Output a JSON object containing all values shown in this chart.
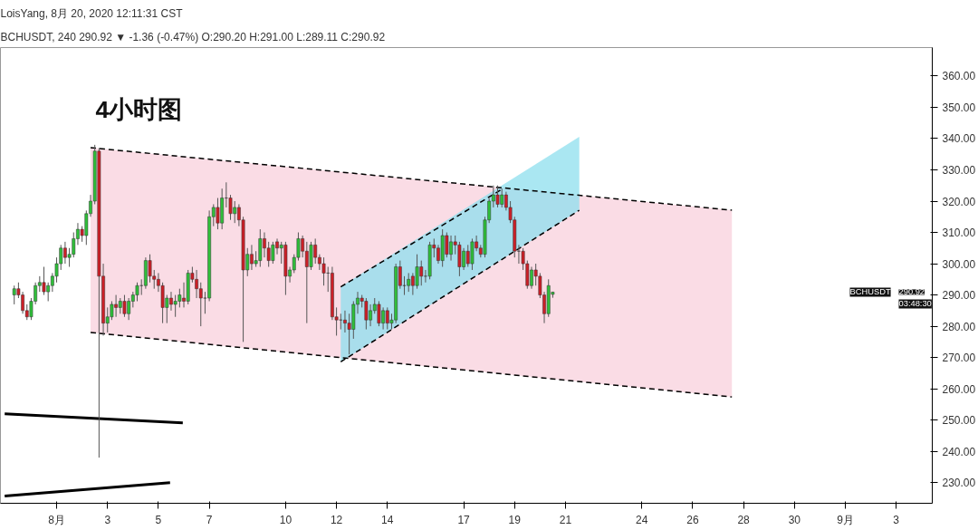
{
  "chart_data": {
    "type": "candlestick",
    "title": "4小时图",
    "annotations": [
      "LoisYang, 8月 20, 2020 12:11:31 CST",
      "BCHUSDT, 240 290.92 ▼ -1.36 (-0.47%) O:290.20 H:291.00 L:289.11 C:290.92",
      "BCHUSDT",
      "290.92",
      "03:48:30"
    ],
    "x": [
      "2020-07-30T08:00",
      "2020-07-30T12:00",
      "2020-07-30T16:00",
      "2020-07-30T20:00",
      "2020-07-31T00:00",
      "2020-07-31T04:00",
      "2020-07-31T08:00",
      "2020-07-31T12:00",
      "2020-07-31T16:00",
      "2020-07-31T20:00",
      "2020-08-01T00:00",
      "2020-08-01T04:00",
      "2020-08-01T08:00",
      "2020-08-01T12:00",
      "2020-08-01T16:00",
      "2020-08-01T20:00",
      "2020-08-02T00:00",
      "2020-08-02T04:00",
      "2020-08-02T08:00",
      "2020-08-02T12:00",
      "2020-08-02T16:00",
      "2020-08-02T20:00",
      "2020-08-03T00:00",
      "2020-08-03T04:00",
      "2020-08-03T08:00",
      "2020-08-03T12:00",
      "2020-08-03T16:00",
      "2020-08-03T20:00",
      "2020-08-04T00:00",
      "2020-08-04T04:00",
      "2020-08-04T08:00",
      "2020-08-04T12:00",
      "2020-08-04T16:00",
      "2020-08-04T20:00",
      "2020-08-05T00:00",
      "2020-08-05T04:00",
      "2020-08-05T08:00",
      "2020-08-05T12:00",
      "2020-08-05T16:00",
      "2020-08-05T20:00",
      "2020-08-06T00:00",
      "2020-08-06T04:00",
      "2020-08-06T08:00",
      "2020-08-06T12:00",
      "2020-08-06T16:00",
      "2020-08-06T20:00",
      "2020-08-07T00:00",
      "2020-08-07T04:00",
      "2020-08-07T08:00",
      "2020-08-07T12:00",
      "2020-08-07T16:00",
      "2020-08-07T20:00",
      "2020-08-08T00:00",
      "2020-08-08T04:00",
      "2020-08-08T08:00",
      "2020-08-08T12:00",
      "2020-08-08T16:00",
      "2020-08-08T20:00",
      "2020-08-09T00:00",
      "2020-08-09T04:00",
      "2020-08-09T08:00",
      "2020-08-09T12:00",
      "2020-08-09T16:00",
      "2020-08-09T20:00",
      "2020-08-10T00:00",
      "2020-08-10T04:00",
      "2020-08-10T08:00",
      "2020-08-10T12:00",
      "2020-08-10T16:00",
      "2020-08-10T20:00",
      "2020-08-11T00:00",
      "2020-08-11T04:00",
      "2020-08-11T08:00",
      "2020-08-11T12:00",
      "2020-08-11T16:00",
      "2020-08-11T20:00",
      "2020-08-12T00:00",
      "2020-08-12T04:00",
      "2020-08-12T08:00",
      "2020-08-12T12:00",
      "2020-08-12T16:00",
      "2020-08-12T20:00",
      "2020-08-13T00:00",
      "2020-08-13T04:00",
      "2020-08-13T08:00",
      "2020-08-13T12:00",
      "2020-08-13T16:00",
      "2020-08-13T20:00",
      "2020-08-14T00:00",
      "2020-08-14T04:00",
      "2020-08-14T08:00",
      "2020-08-14T12:00",
      "2020-08-14T16:00",
      "2020-08-14T20:00",
      "2020-08-15T00:00",
      "2020-08-15T04:00",
      "2020-08-15T08:00",
      "2020-08-15T12:00",
      "2020-08-15T16:00",
      "2020-08-15T20:00",
      "2020-08-16T00:00",
      "2020-08-16T04:00",
      "2020-08-16T08:00",
      "2020-08-16T12:00",
      "2020-08-16T16:00",
      "2020-08-16T20:00",
      "2020-08-17T00:00",
      "2020-08-17T04:00",
      "2020-08-17T08:00",
      "2020-08-17T12:00",
      "2020-08-17T16:00",
      "2020-08-17T20:00",
      "2020-08-18T00:00",
      "2020-08-18T04:00",
      "2020-08-18T08:00",
      "2020-08-18T12:00",
      "2020-08-18T16:00",
      "2020-08-18T20:00",
      "2020-08-19T00:00",
      "2020-08-19T04:00",
      "2020-08-19T08:00",
      "2020-08-19T12:00",
      "2020-08-19T16:00",
      "2020-08-19T20:00",
      "2020-08-20T00:00",
      "2020-08-20T04:00",
      "2020-08-20T08:00",
      "2020-08-20T12:00"
    ],
    "ohlc": [
      [
        290,
        293,
        287,
        292
      ],
      [
        292,
        294,
        289,
        290
      ],
      [
        290,
        291,
        284,
        285
      ],
      [
        285,
        287,
        282,
        283
      ],
      [
        283,
        289,
        282,
        288
      ],
      [
        288,
        294,
        287,
        293
      ],
      [
        293,
        296,
        291,
        294
      ],
      [
        294,
        299,
        290,
        291
      ],
      [
        291,
        294,
        288,
        293
      ],
      [
        293,
        297,
        291,
        296
      ],
      [
        296,
        302,
        294,
        300
      ],
      [
        300,
        306,
        298,
        305
      ],
      [
        305,
        307,
        300,
        302
      ],
      [
        302,
        305,
        299,
        303
      ],
      [
        303,
        310,
        302,
        308
      ],
      [
        308,
        313,
        306,
        311
      ],
      [
        311,
        312,
        307,
        309
      ],
      [
        309,
        317,
        306,
        316
      ],
      [
        316,
        322,
        315,
        320
      ],
      [
        320,
        338,
        319,
        336
      ],
      [
        336,
        337,
        238,
        296
      ],
      [
        296,
        300,
        277,
        281
      ],
      [
        281,
        286,
        278,
        283
      ],
      [
        283,
        288,
        282,
        287
      ],
      [
        287,
        290,
        283,
        286
      ],
      [
        286,
        289,
        284,
        288
      ],
      [
        288,
        290,
        283,
        284
      ],
      [
        284,
        289,
        282,
        288
      ],
      [
        288,
        291,
        286,
        290
      ],
      [
        290,
        294,
        288,
        293
      ],
      [
        293,
        295,
        290,
        293
      ],
      [
        293,
        302,
        292,
        301
      ],
      [
        301,
        303,
        294,
        296
      ],
      [
        296,
        298,
        292,
        295
      ],
      [
        295,
        297,
        291,
        293
      ],
      [
        293,
        294,
        281,
        286
      ],
      [
        286,
        290,
        281,
        289
      ],
      [
        289,
        291,
        285,
        287
      ],
      [
        287,
        290,
        283,
        288
      ],
      [
        288,
        292,
        286,
        290
      ],
      [
        289,
        294,
        286,
        288
      ],
      [
        288,
        298,
        287,
        297
      ],
      [
        297,
        299,
        294,
        295
      ],
      [
        295,
        298,
        289,
        292
      ],
      [
        292,
        294,
        280,
        289
      ],
      [
        289,
        291,
        284,
        289
      ],
      [
        289,
        317,
        288,
        315
      ],
      [
        315,
        319,
        312,
        318
      ],
      [
        318,
        321,
        311,
        313
      ],
      [
        313,
        324,
        311,
        321
      ],
      [
        321,
        326,
        318,
        321
      ],
      [
        321,
        322,
        314,
        316
      ],
      [
        316,
        320,
        313,
        318
      ],
      [
        318,
        319,
        312,
        314
      ],
      [
        314,
        315,
        275,
        298
      ],
      [
        298,
        305,
        296,
        303
      ],
      [
        303,
        306,
        298,
        300
      ],
      [
        300,
        304,
        299,
        301
      ],
      [
        301,
        311,
        299,
        308
      ],
      [
        308,
        310,
        302,
        305
      ],
      [
        305,
        307,
        299,
        301
      ],
      [
        301,
        307,
        300,
        306
      ],
      [
        307,
        308,
        303,
        305
      ],
      [
        305,
        307,
        300,
        306
      ],
      [
        306,
        307,
        290,
        296
      ],
      [
        296,
        299,
        294,
        298
      ],
      [
        298,
        303,
        297,
        302
      ],
      [
        302,
        310,
        301,
        308
      ],
      [
        308,
        309,
        302,
        304
      ],
      [
        304,
        307,
        281,
        299
      ],
      [
        299,
        307,
        298,
        306
      ],
      [
        306,
        308,
        300,
        302
      ],
      [
        302,
        303,
        298,
        300
      ],
      [
        300,
        302,
        293,
        297
      ],
      [
        297,
        299,
        291,
        297
      ],
      [
        297,
        299,
        282,
        283
      ],
      [
        283,
        286,
        277,
        282
      ],
      [
        282,
        284,
        279,
        282
      ],
      [
        282,
        285,
        278,
        281
      ],
      [
        281,
        284,
        271,
        279
      ],
      [
        279,
        288,
        276,
        287
      ],
      [
        287,
        291,
        284,
        289
      ],
      [
        289,
        290,
        286,
        288
      ],
      [
        288,
        289,
        279,
        282
      ],
      [
        282,
        287,
        280,
        285
      ],
      [
        285,
        289,
        284,
        287
      ],
      [
        287,
        288,
        280,
        281
      ],
      [
        281,
        286,
        279,
        285
      ],
      [
        285,
        286,
        279,
        281
      ],
      [
        281,
        284,
        279,
        282
      ],
      [
        282,
        300,
        281,
        299
      ],
      [
        299,
        301,
        292,
        293
      ],
      [
        293,
        296,
        290,
        293
      ],
      [
        293,
        297,
        291,
        295
      ],
      [
        296,
        297,
        290,
        293
      ],
      [
        293,
        303,
        292,
        299
      ],
      [
        299,
        301,
        293,
        296
      ],
      [
        296,
        298,
        294,
        296
      ],
      [
        296,
        307,
        295,
        306
      ],
      [
        306,
        308,
        302,
        305
      ],
      [
        305,
        306,
        300,
        301
      ],
      [
        301,
        311,
        299,
        309
      ],
      [
        309,
        310,
        302,
        303
      ],
      [
        303,
        309,
        301,
        307
      ],
      [
        307,
        309,
        303,
        306
      ],
      [
        306,
        307,
        296,
        299
      ],
      [
        299,
        305,
        298,
        304
      ],
      [
        304,
        306,
        299,
        300
      ],
      [
        300,
        308,
        298,
        307
      ],
      [
        307,
        309,
        304,
        305
      ],
      [
        305,
        306,
        302,
        303
      ],
      [
        303,
        315,
        302,
        314
      ],
      [
        314,
        321,
        313,
        320
      ],
      [
        320,
        325,
        318,
        322
      ],
      [
        322,
        325,
        318,
        319
      ],
      [
        319,
        324,
        318,
        322
      ],
      [
        322,
        323,
        317,
        318
      ],
      [
        318,
        320,
        313,
        314
      ],
      [
        314,
        315,
        302,
        304
      ],
      [
        304,
        306,
        300,
        304
      ],
      [
        304,
        305,
        298,
        300
      ],
      [
        300,
        301,
        292,
        293
      ],
      [
        293,
        299,
        292,
        298
      ],
      [
        298,
        300,
        293,
        296
      ],
      [
        296,
        297,
        289,
        290
      ],
      [
        290,
        291,
        281,
        284
      ],
      [
        284,
        295,
        283,
        293
      ],
      [
        290.2,
        291,
        289.11,
        290.92
      ]
    ],
    "series": [
      {
        "type": "line",
        "line_style": "dashed",
        "color": "#000000",
        "x": [
          "2020-08-02T08:00",
          "2020-08-27T13:00"
        ],
        "values": [
          337.1,
          317.1
        ],
        "lower": [
          278.0,
          257.4
        ],
        "upper": [
          337.1,
          317.1
        ]
      },
      {
        "type": "line",
        "line_style": "dashed",
        "color": "#000000",
        "x": [
          "2020-08-02T08:00",
          "2020-08-27T13:00"
        ],
        "values": [
          278.0,
          257.4
        ]
      },
      {
        "type": "line",
        "line_style": "dashed",
        "color": "#000000",
        "x": [
          "2020-08-12T04:00",
          "2020-08-21T13:00"
        ],
        "values": [
          268.6,
          317.1
        ],
        "lower": [
          268.6,
          317.1
        ],
        "upper": [
          292.6,
          340.6
        ]
      },
      {
        "type": "line",
        "line_style": "dashed",
        "color": "#000000",
        "x": [
          "2020-08-12T04:00",
          "2020-08-18T13:00"
        ],
        "values": [
          292.6,
          324.0
        ]
      },
      {
        "type": "line",
        "line_style": "solid",
        "color": "#000000",
        "x": [
          "2020-07-29T23:00",
          "2020-08-05T23:00"
        ],
        "values": [
          252.0,
          249.1
        ]
      },
      {
        "type": "line",
        "line_style": "solid",
        "color": "#000000",
        "x": [
          "2020-07-29T23:00",
          "2020-08-05T11:00"
        ],
        "values": [
          225.7,
          230.0
        ]
      }
    ],
    "xlim": [
      "2020-07-29T19:00",
      "2020-09-04T10:00"
    ],
    "xticks": [
      {
        "value": "2020-08-01",
        "label": "8月"
      },
      {
        "value": "2020-08-03",
        "label": "3"
      },
      {
        "value": "2020-08-05",
        "label": "5"
      },
      {
        "value": "2020-08-07",
        "label": "7"
      },
      {
        "value": "2020-08-10",
        "label": "10"
      },
      {
        "value": "2020-08-12",
        "label": "12"
      },
      {
        "value": "2020-08-14",
        "label": "14"
      },
      {
        "value": "2020-08-17",
        "label": "17"
      },
      {
        "value": "2020-08-19",
        "label": "19"
      },
      {
        "value": "2020-08-21",
        "label": "21"
      },
      {
        "value": "2020-08-24",
        "label": "24"
      },
      {
        "value": "2020-08-26",
        "label": "26"
      },
      {
        "value": "2020-08-28",
        "label": "28"
      },
      {
        "value": "2020-08-30",
        "label": "30"
      },
      {
        "value": "2020-09-01",
        "label": "9月"
      },
      {
        "value": "2020-09-03",
        "label": "3"
      }
    ],
    "ylim": [
      223.4,
      369.1
    ],
    "yticks": [
      {
        "value": 230,
        "label": "230.00"
      },
      {
        "value": 240,
        "label": "240.00"
      },
      {
        "value": 250,
        "label": "250.00"
      },
      {
        "value": 260,
        "label": "260.00"
      },
      {
        "value": 270,
        "label": "270.00"
      },
      {
        "value": 280,
        "label": "280.00"
      },
      {
        "value": 290,
        "label": "290.00"
      },
      {
        "value": 300,
        "label": "300.00"
      },
      {
        "value": 310,
        "label": "310.00"
      },
      {
        "value": 320,
        "label": "320.00"
      },
      {
        "value": 330,
        "label": "330.00"
      },
      {
        "value": 340,
        "label": "340.00"
      },
      {
        "value": 350,
        "label": "350.00"
      },
      {
        "value": 360,
        "label": "360.00"
      }
    ],
    "grid": false
  }
}
